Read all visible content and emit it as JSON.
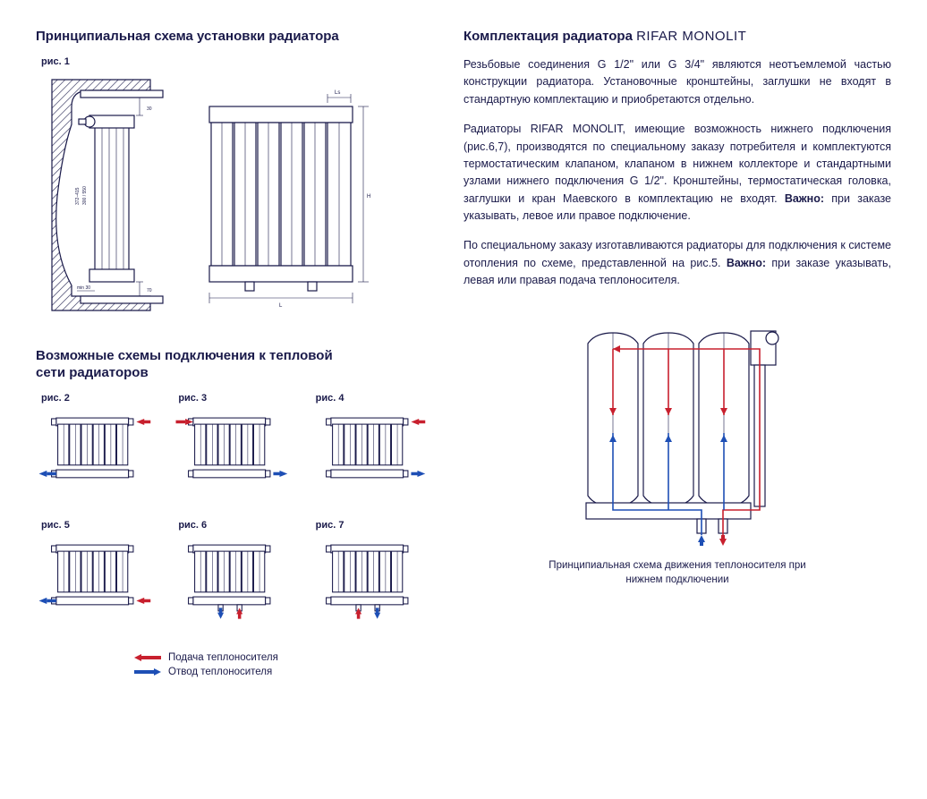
{
  "left": {
    "heading1": "Принципиальная схема установки радиатора",
    "fig1_label": "рис. 1",
    "heading2a": "Возможные схемы подключения к тепловой",
    "heading2b": "сети радиаторов",
    "schemes": [
      {
        "label": "рис. 2",
        "in": "top-right",
        "out": "bottom-left"
      },
      {
        "label": "рис. 3",
        "in": "top-left",
        "out": "bottom-right"
      },
      {
        "label": "рис. 4",
        "in": "top-right",
        "out": "bottom-right"
      },
      {
        "label": "рис. 5",
        "in": "bottom-right",
        "out": "bottom-left"
      },
      {
        "label": "рис. 6",
        "in": "bottom-center-right",
        "out": "bottom-center-left"
      },
      {
        "label": "рис. 7",
        "in": "bottom-center-left",
        "out": "bottom-center-right"
      }
    ],
    "legend_supply": "Подача теплоносителя",
    "legend_return": "Отвод теплоносителя",
    "fig1_dims": {
      "section_heights": "300 / 550",
      "overall_heights": "372–415",
      "top_gap": "30",
      "bottom_gap": "70",
      "wall_gap": "30",
      "length_label": "L",
      "height_label": "H",
      "section_label": "Ls"
    }
  },
  "right": {
    "heading_prefix": "Комплектация радиатора ",
    "heading_brand": "RIFAR MONOLIT",
    "para1": "Резьбовые соединения G 1/2\" или G 3/4\" являются неотъемлемой частью конструкции радиатора. Установочные кронштейны, заглушки не входят в стандартную комплектацию и приобретаются отдельно.",
    "para2_a": "Радиаторы RIFAR MONOLIT, имеющие возможность нижнего подключения (рис.6,7), производятся по специальному заказу потребителя и комплектуются термостатическим клапаном, клапаном в нижнем коллекторе и стандартными узлами нижнего подключения G 1/2\". Кронштейны, термостатическая головка, заглушки и кран Маевского в комплектацию не входят. ",
    "para2_bold": "Важно:",
    "para2_b": " при заказе указывать, левое или правое подключение.",
    "para3_a": "По специальному заказу изготавливаются радиаторы для подключения к системе отопления по схеме, представленной на рис.5. ",
    "para3_bold": "Важно:",
    "para3_b": " при заказе указывать, левая или правая подача теплоносителя.",
    "flow_caption_a": "Принципиальная схема движения теплоносителя при",
    "flow_caption_b": "нижнем подключении"
  },
  "colors": {
    "ink": "#1a1a4a",
    "red": "#c8202e",
    "blue": "#1e4fb5",
    "bg": "#ffffff"
  }
}
